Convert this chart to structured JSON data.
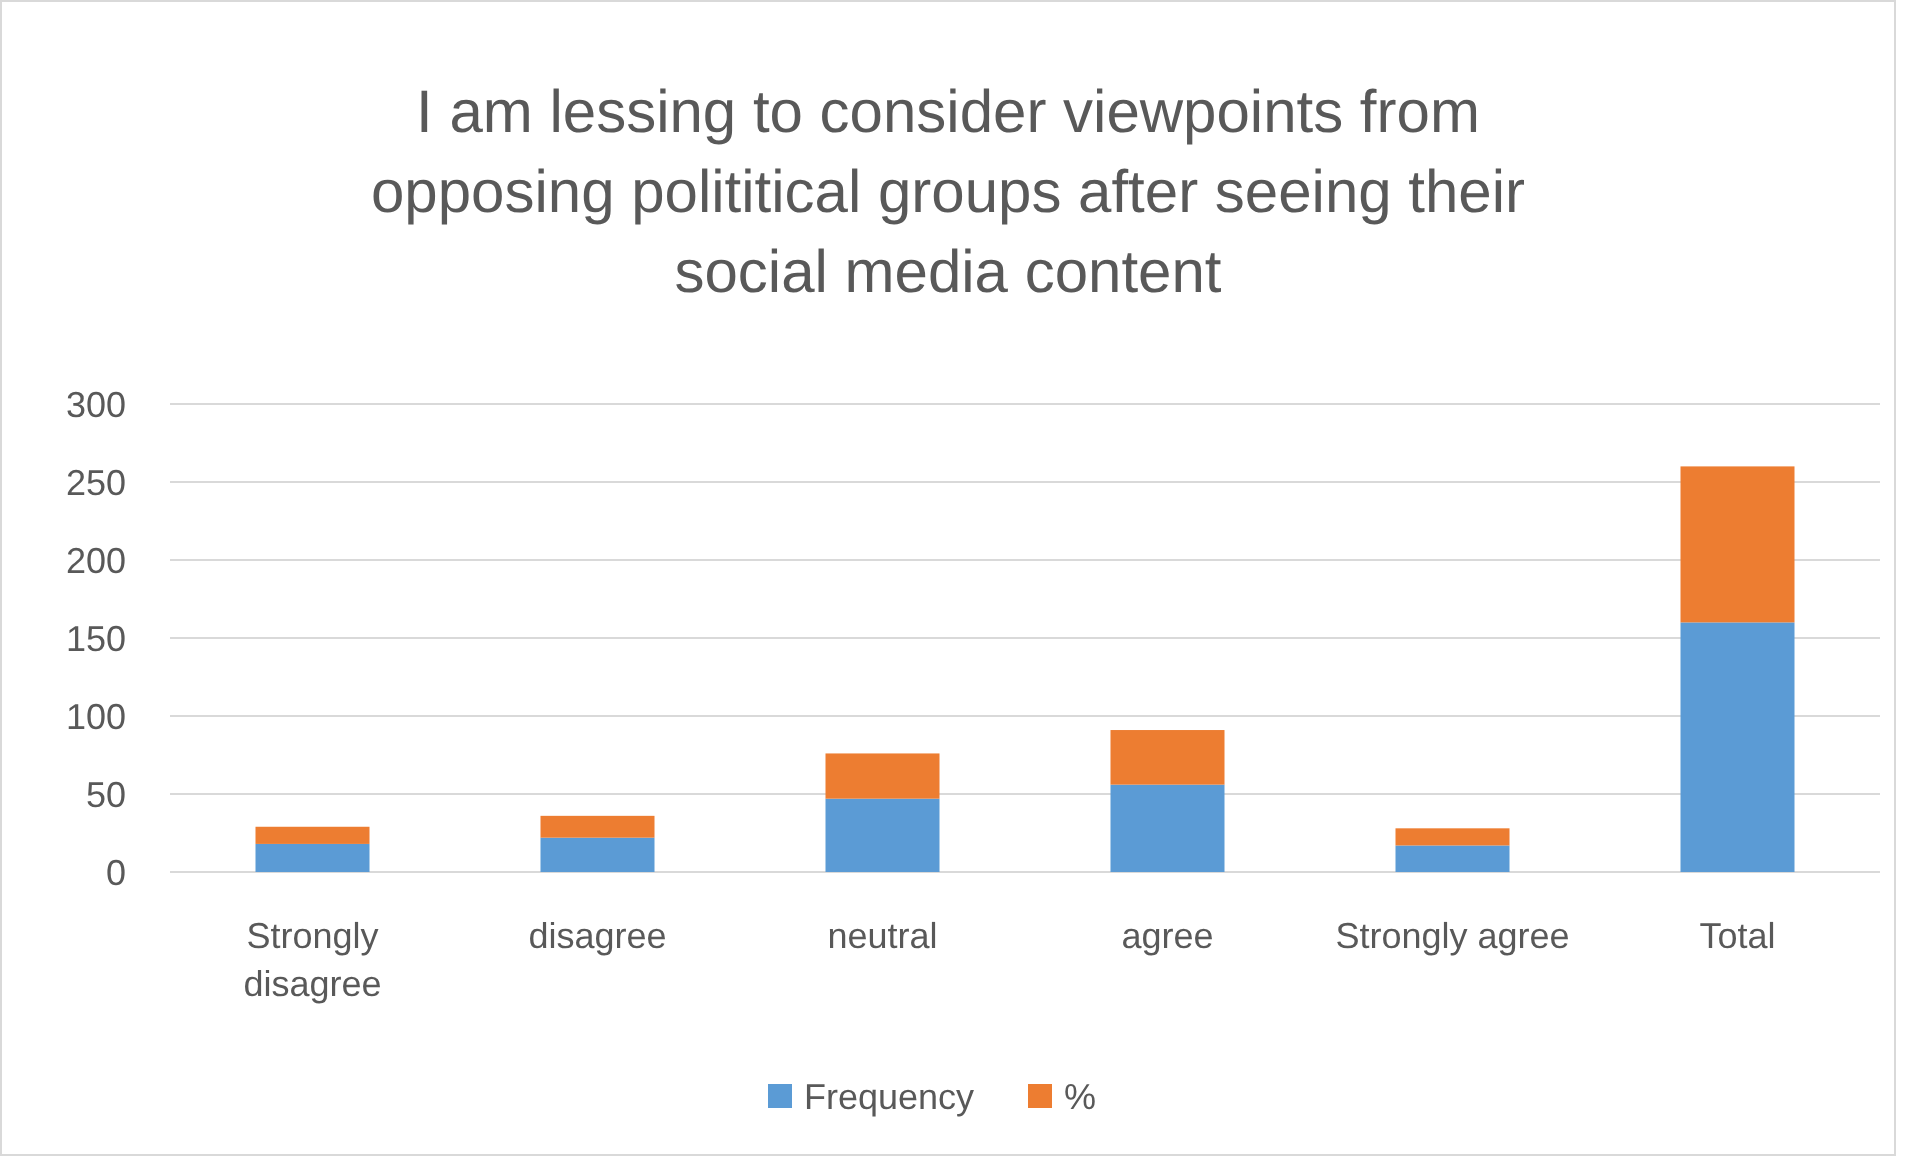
{
  "chart_data": {
    "type": "bar",
    "title": "I am lessing to consider viewpoints from opposing polititical groups after seeing their social media content",
    "categories": [
      "Strongly disagree",
      "disagree",
      "neutral",
      "agree",
      "Strongly agree",
      "Total"
    ],
    "stacked": true,
    "series": [
      {
        "name": "Frequency",
        "color": "#5b9bd5",
        "values": [
          18,
          22,
          47,
          56,
          17,
          160
        ]
      },
      {
        "name": "%",
        "color": "#ed7d31",
        "values": [
          11,
          14,
          29,
          35,
          11,
          100
        ]
      }
    ],
    "ylim": [
      0,
      300
    ],
    "yticks": [
      0,
      50,
      100,
      150,
      200,
      250,
      300
    ],
    "grid": "y",
    "legend": "bottom"
  }
}
